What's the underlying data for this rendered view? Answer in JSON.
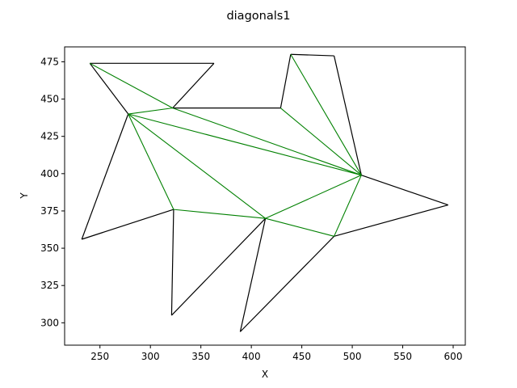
{
  "chart_data": {
    "type": "line",
    "title": "diagonals1",
    "xlabel": "X",
    "ylabel": "Y",
    "xlim": [
      215.0,
      612.0
    ],
    "ylim": [
      285.0,
      485.0
    ],
    "xticks": [
      250,
      300,
      350,
      400,
      450,
      500,
      550,
      600
    ],
    "yticks": [
      300,
      325,
      350,
      375,
      400,
      425,
      450,
      475
    ],
    "grid": false,
    "polygon": {
      "color": "#000000",
      "vertices": [
        [
          240,
          474
        ],
        [
          363,
          474
        ],
        [
          322,
          444
        ],
        [
          429,
          444
        ],
        [
          439,
          480
        ],
        [
          482,
          479
        ],
        [
          509,
          399
        ],
        [
          595,
          379
        ],
        [
          482,
          358
        ],
        [
          389,
          294
        ],
        [
          414,
          370
        ],
        [
          321,
          305
        ],
        [
          323,
          376
        ],
        [
          232,
          356
        ],
        [
          278,
          440
        ]
      ]
    },
    "diagonals": {
      "color": "#008000",
      "segments": [
        [
          [
            240,
            474
          ],
          [
            322,
            444
          ]
        ],
        [
          [
            278,
            440
          ],
          [
            322,
            444
          ]
        ],
        [
          [
            322,
            444
          ],
          [
            509,
            399
          ]
        ],
        [
          [
            278,
            440
          ],
          [
            509,
            399
          ]
        ],
        [
          [
            439,
            480
          ],
          [
            509,
            399
          ]
        ],
        [
          [
            429,
            444
          ],
          [
            509,
            399
          ]
        ],
        [
          [
            278,
            440
          ],
          [
            414,
            370
          ]
        ],
        [
          [
            278,
            440
          ],
          [
            323,
            376
          ]
        ],
        [
          [
            323,
            376
          ],
          [
            414,
            370
          ]
        ],
        [
          [
            414,
            370
          ],
          [
            509,
            399
          ]
        ],
        [
          [
            414,
            370
          ],
          [
            482,
            358
          ]
        ],
        [
          [
            482,
            358
          ],
          [
            509,
            399
          ]
        ]
      ]
    }
  }
}
